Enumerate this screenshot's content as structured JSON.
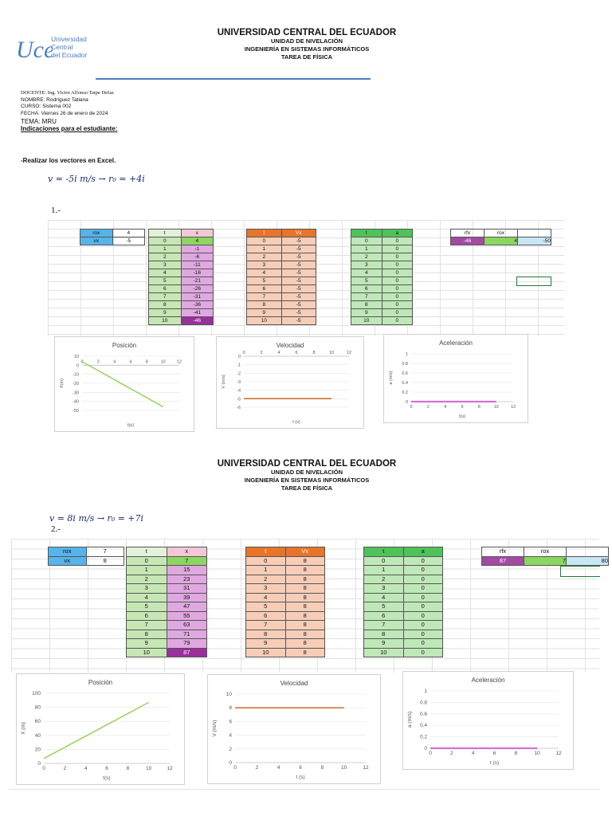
{
  "header": {
    "university": "UNIVERSIDAD CENTRAL DEL ECUADOR",
    "unit": "UNIDAD DE NIVELACIÓN",
    "program": "INGENIERÍA EN SISTEMAS INFORMÁTICOS",
    "task": "TAREA DE FÍSICA"
  },
  "logo": {
    "mark": "UCE",
    "line1": "Universidad",
    "line2": "Central",
    "line3": "del Ecuador"
  },
  "info": {
    "docente": "DOCENTE: Ing. Victor Alfonso Taipe Defaz",
    "nombre": "NOMBRE: Rodríguez Tatiana",
    "curso": "CURSO: Sistema 002",
    "fecha": "FECHA: Viernes 26 de enero de 2024",
    "tema": "TEMA:  MRU",
    "indicaciones": "Indicaciones para el estudiante:",
    "instruccion": "-Realizar los vectores en Excel."
  },
  "problems": [
    {
      "number": "1.-",
      "handwriting": "v = -5i  m/s  →  r₀ = +4i",
      "rox_label": "rox",
      "rox_value": "4",
      "vx_label": "vx",
      "vx_value": "-5",
      "pos_head": [
        "t",
        "x"
      ],
      "vel_head": [
        "t",
        "Vx"
      ],
      "acc_head": [
        "t",
        "a"
      ],
      "t": [
        "0",
        "1",
        "2",
        "3",
        "4",
        "5",
        "6",
        "7",
        "8",
        "9",
        "10"
      ],
      "x": [
        "4",
        "-1",
        "-6",
        "-11",
        "-16",
        "-21",
        "-26",
        "-31",
        "-36",
        "-41",
        "-46"
      ],
      "v": [
        "-5",
        "-5",
        "-5",
        "-5",
        "-5",
        "-5",
        "-5",
        "-5",
        "-5",
        "-5",
        "-5"
      ],
      "a": [
        "0",
        "0",
        "0",
        "0",
        "0",
        "0",
        "0",
        "0",
        "0",
        "0",
        "0"
      ],
      "summary": {
        "rfx_label": "rfx",
        "rox_label": "rox",
        "rfx": "-46",
        "rox": "4",
        "diff": "-50"
      }
    },
    {
      "number": "2.-",
      "handwriting": "v = 8i  m/s  →  r₀ = +7i",
      "rox_label": "rox",
      "rox_value": "7",
      "vx_label": "vx",
      "vx_value": "8",
      "pos_head": [
        "t",
        "x"
      ],
      "vel_head": [
        "t",
        "Vx"
      ],
      "acc_head": [
        "t",
        "a"
      ],
      "t": [
        "0",
        "1",
        "2",
        "3",
        "4",
        "5",
        "6",
        "7",
        "8",
        "9",
        "10"
      ],
      "x": [
        "7",
        "15",
        "23",
        "31",
        "39",
        "47",
        "55",
        "63",
        "71",
        "79",
        "87"
      ],
      "v": [
        "8",
        "8",
        "8",
        "8",
        "8",
        "8",
        "8",
        "8",
        "8",
        "8",
        "8"
      ],
      "a": [
        "0",
        "0",
        "0",
        "0",
        "0",
        "0",
        "0",
        "0",
        "0",
        "0",
        "0"
      ],
      "summary": {
        "rfx_label": "rfx",
        "rox_label": "rox",
        "rfx": "87",
        "rox": "7",
        "diff": "80"
      }
    }
  ],
  "colors": {
    "position_line": "#92d050",
    "velocity_line": "#c55a11",
    "accel_line": "#d46fd4"
  },
  "chart_data": [
    {
      "type": "line",
      "title": "Posición",
      "xlabel": "t(s)",
      "ylabel": "X(m)",
      "xlim": [
        0,
        12
      ],
      "ylim": [
        -50,
        10
      ],
      "xticks": [
        0,
        2,
        4,
        6,
        8,
        10,
        12
      ],
      "yticks": [
        10,
        0,
        -10,
        -20,
        -30,
        -40,
        -50
      ],
      "x": [
        0,
        10
      ],
      "y": [
        4,
        -46
      ]
    },
    {
      "type": "line",
      "title": "Velocidad",
      "xlabel": "t (s)",
      "ylabel": "V (m/s)",
      "xlim": [
        0,
        12
      ],
      "ylim": [
        -6,
        0
      ],
      "xticks": [
        0,
        2,
        4,
        6,
        8,
        10,
        12
      ],
      "yticks": [
        0,
        -1,
        -2,
        -3,
        -4,
        -5,
        -6
      ],
      "x": [
        0,
        10
      ],
      "y": [
        -5,
        -5
      ]
    },
    {
      "type": "line",
      "title": "Aceleración",
      "xlabel": "t(s)",
      "ylabel": "a (m/s)",
      "xlim": [
        0,
        12
      ],
      "ylim": [
        0,
        1
      ],
      "xticks": [
        0,
        2,
        4,
        6,
        8,
        10,
        12
      ],
      "yticks": [
        1,
        0.8,
        0.6,
        0.4,
        0.2,
        0
      ],
      "x": [
        0,
        10
      ],
      "y": [
        0,
        0
      ]
    },
    {
      "type": "line",
      "title": "Posición",
      "xlabel": "t(s)",
      "ylabel": "X (m)",
      "xlim": [
        0,
        12
      ],
      "ylim": [
        0,
        100
      ],
      "xticks": [
        0,
        2,
        4,
        6,
        8,
        10,
        12
      ],
      "yticks": [
        100,
        80,
        60,
        40,
        20,
        0
      ],
      "x": [
        0,
        10
      ],
      "y": [
        7,
        87
      ]
    },
    {
      "type": "line",
      "title": "Velocidad",
      "xlabel": "t (s)",
      "ylabel": "V (m/s)",
      "xlim": [
        0,
        12
      ],
      "ylim": [
        0,
        10
      ],
      "xticks": [
        0,
        2,
        4,
        6,
        8,
        10,
        12
      ],
      "yticks": [
        10,
        8,
        6,
        4,
        2,
        0
      ],
      "x": [
        0,
        10
      ],
      "y": [
        8,
        8
      ]
    },
    {
      "type": "line",
      "title": "Aceleración",
      "xlabel": "t (s)",
      "ylabel": "a (m/s)",
      "xlim": [
        0,
        12
      ],
      "ylim": [
        0,
        1
      ],
      "xticks": [
        0,
        2,
        4,
        6,
        8,
        10,
        12
      ],
      "yticks": [
        1,
        0.8,
        0.6,
        0.4,
        0.2,
        0
      ],
      "x": [
        0,
        10
      ],
      "y": [
        0,
        0
      ]
    }
  ]
}
